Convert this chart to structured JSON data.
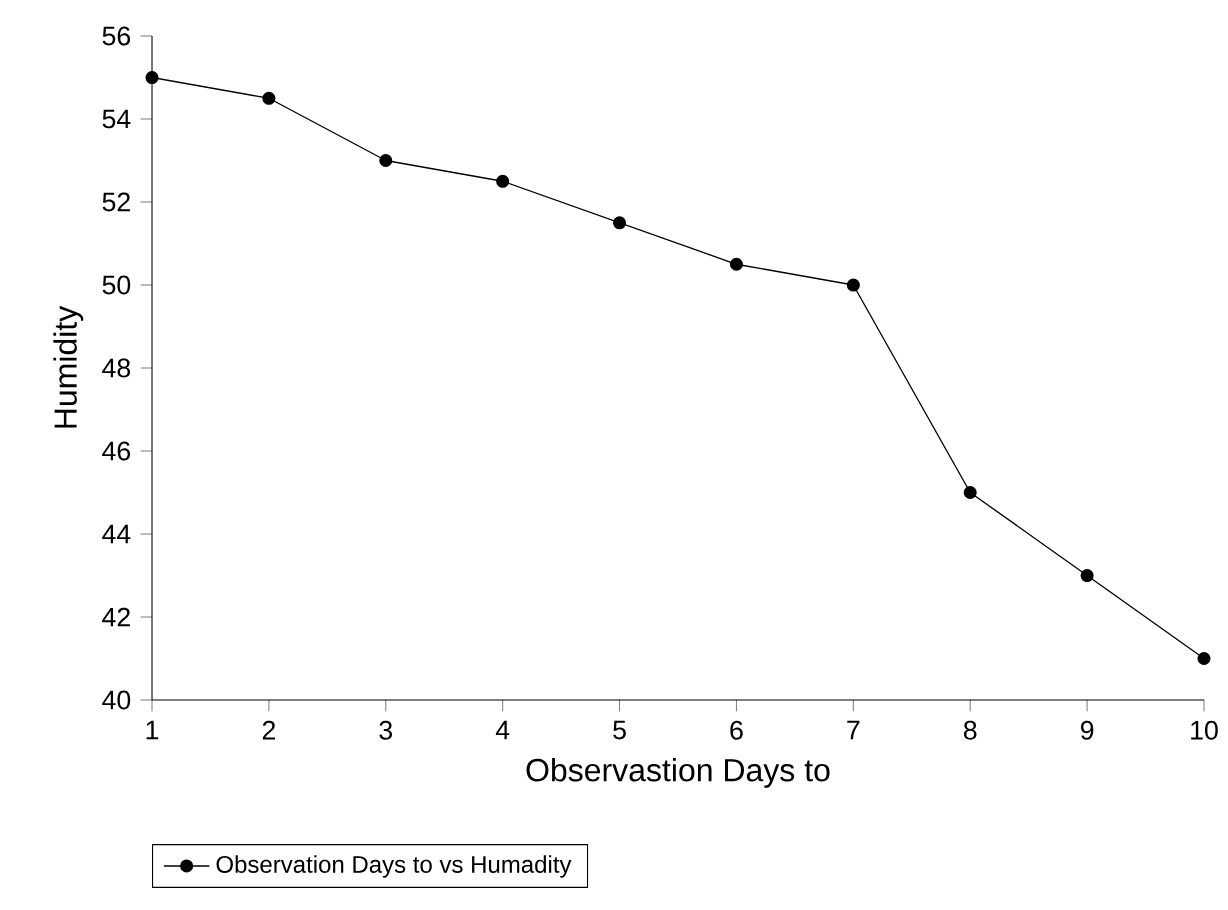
{
  "chart_data": {
    "type": "line",
    "xlabel": "Observastion Days to",
    "ylabel": "Humidity",
    "x": [
      1,
      2,
      3,
      4,
      5,
      6,
      7,
      8,
      9,
      10
    ],
    "series": [
      {
        "name": "Observation Days to vs Humadity",
        "color": "#000000",
        "values": [
          55,
          54.5,
          53,
          52.5,
          51.5,
          50.5,
          50,
          45,
          43,
          41
        ]
      }
    ],
    "xlim": [
      1,
      10
    ],
    "ylim": [
      40,
      56
    ],
    "xticks": [
      1,
      2,
      3,
      4,
      5,
      6,
      7,
      8,
      9,
      10
    ],
    "yticks": [
      40,
      42,
      44,
      46,
      48,
      50,
      52,
      54,
      56
    ],
    "grid": false,
    "legend": "bottom",
    "marker": "circle",
    "line_style": "solid"
  }
}
